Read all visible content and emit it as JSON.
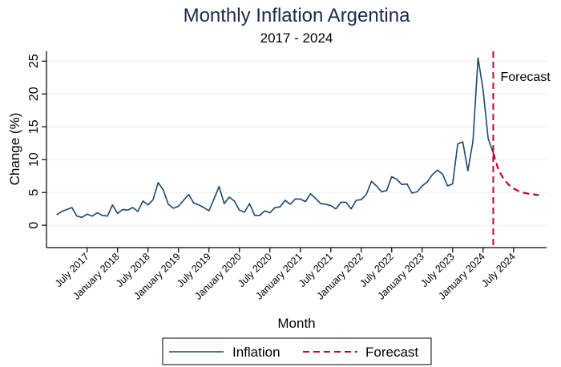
{
  "chart_data": {
    "type": "line",
    "title": "Monthly Inflation Argentina",
    "subtitle": "2017 - 2024",
    "xlabel": "Month",
    "ylabel": "Change (%)",
    "ylim": [
      -3.4,
      26.5
    ],
    "yticks": [
      0,
      5,
      10,
      15,
      20,
      25
    ],
    "grid": true,
    "legend_position": "bottom",
    "start_month": "January 2017",
    "xtick_labels": [
      "July 2017",
      "January 2018",
      "July 2018",
      "January 2019",
      "July 2019",
      "January 2020",
      "July 2020",
      "January 2021",
      "July 2021",
      "January 2022",
      "July 2022",
      "January 2023",
      "July 2023",
      "January 2024",
      "July 2024"
    ],
    "xtick_month_index": [
      6,
      12,
      18,
      24,
      30,
      36,
      42,
      48,
      54,
      60,
      66,
      72,
      78,
      84,
      90
    ],
    "x_range_month_index": [
      -2,
      96.5
    ],
    "series": [
      {
        "name": "Inflation",
        "color": "#1a476f",
        "style": "solid",
        "start_month_index": 0,
        "values": [
          1.6,
          2.1,
          2.4,
          2.7,
          1.4,
          1.2,
          1.7,
          1.4,
          1.9,
          1.5,
          1.4,
          3.1,
          1.8,
          2.4,
          2.3,
          2.7,
          2.1,
          3.7,
          3.1,
          3.9,
          6.5,
          5.4,
          3.2,
          2.6,
          2.9,
          3.8,
          4.7,
          3.4,
          3.1,
          2.7,
          2.2,
          4.0,
          5.9,
          3.3,
          4.3,
          3.7,
          2.3,
          2.0,
          3.3,
          1.5,
          1.5,
          2.2,
          1.9,
          2.7,
          2.8,
          3.8,
          3.2,
          4.0,
          4.0,
          3.6,
          4.8,
          4.1,
          3.3,
          3.2,
          3.0,
          2.5,
          3.5,
          3.5,
          2.5,
          3.8,
          3.9,
          4.7,
          6.7,
          6.0,
          5.1,
          5.3,
          7.4,
          7.0,
          6.2,
          6.3,
          4.9,
          5.1,
          6.0,
          6.6,
          7.7,
          8.4,
          7.8,
          6.0,
          6.3,
          12.4,
          12.7,
          8.3,
          12.8,
          25.5,
          20.6,
          13.2,
          11.0
        ]
      },
      {
        "name": "Forecast",
        "color": "#c10534",
        "style": "dashed",
        "start_month_index": 86,
        "values": [
          11.0,
          8.5,
          7.1,
          6.2,
          5.6,
          5.2,
          4.95,
          4.8,
          4.7,
          4.6
        ]
      }
    ],
    "annotations": [
      {
        "text": "Forecast",
        "type": "vline",
        "month_index": 86,
        "color": "#c10534"
      }
    ]
  },
  "legend": {
    "items": [
      {
        "label": "Inflation",
        "color": "#1a476f",
        "style": "solid"
      },
      {
        "label": "Forecast",
        "color": "#c10534",
        "style": "dashed"
      }
    ]
  }
}
